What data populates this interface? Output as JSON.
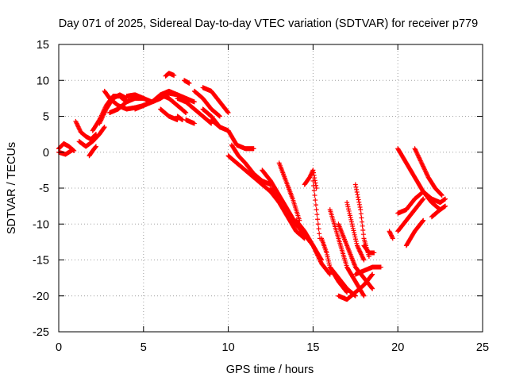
{
  "chart_data": {
    "type": "scatter",
    "title": "Day 071 of 2025, Sidereal Day-to-day VTEC variation (SDTVAR) for receiver p779",
    "xlabel": "GPS time / hours",
    "ylabel": "SDTVAR / TECUs",
    "xlim": [
      0,
      25
    ],
    "ylim": [
      -25,
      15
    ],
    "x_ticks": [
      0,
      5,
      10,
      15,
      20,
      25
    ],
    "y_ticks": [
      15,
      10,
      5,
      0,
      -5,
      -10,
      -15,
      -20,
      -25
    ],
    "x_tick_labels": [
      "0",
      "5",
      "10",
      "15",
      "20",
      "25"
    ],
    "y_tick_labels": [
      "15",
      "10",
      "5",
      "0",
      "-5",
      "-10",
      "-15",
      "-20",
      "-25"
    ],
    "grid": true,
    "marker": "+",
    "series_color": "#ff0000",
    "tracks": [
      {
        "x": [
          0.0,
          0.3,
          0.6,
          0.9
        ],
        "y": [
          0.5,
          1.2,
          0.8,
          0.2
        ]
      },
      {
        "x": [
          0.0,
          0.4,
          0.8
        ],
        "y": [
          0.0,
          -0.3,
          0.3
        ]
      },
      {
        "x": [
          1.0,
          1.3,
          1.6,
          1.9,
          2.2
        ],
        "y": [
          4.3,
          2.8,
          2.2,
          1.8,
          2.5
        ]
      },
      {
        "x": [
          1.2,
          1.6,
          2.0,
          2.4,
          2.7
        ],
        "y": [
          1.5,
          0.8,
          1.5,
          2.5,
          3.5
        ]
      },
      {
        "x": [
          1.8,
          2.0,
          2.2
        ],
        "y": [
          -0.5,
          0.2,
          0.8
        ]
      },
      {
        "x": [
          2.0,
          2.4,
          2.8,
          3.2,
          3.6,
          4.0
        ],
        "y": [
          3.0,
          4.5,
          6.5,
          7.8,
          7.8,
          7.0
        ]
      },
      {
        "x": [
          2.4,
          2.8,
          3.2,
          3.6,
          4.0
        ],
        "y": [
          4.0,
          6.0,
          7.5,
          8.0,
          7.5
        ]
      },
      {
        "x": [
          2.7,
          3.0,
          3.5,
          4.0,
          4.5,
          5.0,
          5.5,
          6.0
        ],
        "y": [
          8.5,
          7.5,
          6.5,
          6.0,
          6.2,
          6.5,
          7.0,
          7.5
        ]
      },
      {
        "x": [
          3.0,
          3.5,
          4.0,
          4.5,
          5.0
        ],
        "y": [
          5.5,
          6.0,
          7.0,
          7.5,
          7.5
        ]
      },
      {
        "x": [
          4.0,
          4.5,
          5.0,
          5.5,
          6.0
        ],
        "y": [
          7.8,
          8.0,
          7.5,
          7.0,
          7.5
        ]
      },
      {
        "x": [
          4.5,
          5.0,
          5.5,
          6.0,
          6.5,
          7.0
        ],
        "y": [
          6.0,
          6.5,
          7.0,
          7.5,
          8.2,
          8.0
        ]
      },
      {
        "x": [
          5.5,
          6.0,
          6.5,
          7.0,
          7.5,
          8.0
        ],
        "y": [
          7.0,
          8.0,
          8.5,
          8.0,
          7.5,
          7.0
        ]
      },
      {
        "x": [
          6.0,
          6.5,
          7.0,
          7.5
        ],
        "y": [
          8.0,
          7.5,
          6.5,
          5.5
        ]
      },
      {
        "x": [
          6.0,
          6.5,
          7.0
        ],
        "y": [
          6.0,
          5.0,
          4.5
        ]
      },
      {
        "x": [
          6.3,
          6.5,
          6.8
        ],
        "y": [
          10.6,
          11.0,
          10.7
        ]
      },
      {
        "x": [
          7.0,
          7.5,
          8.0,
          8.5,
          9.0
        ],
        "y": [
          7.5,
          7.0,
          6.0,
          5.0,
          4.0
        ]
      },
      {
        "x": [
          7.4,
          7.7
        ],
        "y": [
          10.0,
          9.6
        ]
      },
      {
        "x": [
          7.5,
          7.8,
          8.0
        ],
        "y": [
          4.5,
          4.2,
          4.0
        ]
      },
      {
        "x": [
          7.0,
          7.3
        ],
        "y": [
          5.0,
          4.5
        ]
      },
      {
        "x": [
          8.0,
          8.5,
          9.0,
          9.5
        ],
        "y": [
          8.5,
          7.5,
          6.0,
          5.0
        ]
      },
      {
        "x": [
          8.5,
          9.0,
          9.5,
          10.0
        ],
        "y": [
          9.0,
          8.5,
          7.0,
          5.5
        ]
      },
      {
        "x": [
          8.5,
          9.0,
          9.5
        ],
        "y": [
          6.0,
          5.0,
          3.5
        ]
      },
      {
        "x": [
          9.0,
          9.5,
          10.0
        ],
        "y": [
          4.5,
          3.5,
          3.0
        ]
      },
      {
        "x": [
          10.0,
          10.5,
          11.0,
          11.5
        ],
        "y": [
          3.0,
          1.0,
          0.5,
          0.5
        ]
      },
      {
        "x": [
          10.2,
          10.6,
          11.0,
          11.5,
          12.0,
          12.5
        ],
        "y": [
          1.0,
          -0.5,
          -1.5,
          -3.0,
          -4.0,
          -4.5
        ]
      },
      {
        "x": [
          10.0,
          10.5,
          11.0,
          11.5,
          12.0,
          12.5,
          13.0
        ],
        "y": [
          -0.5,
          -1.5,
          -2.5,
          -3.5,
          -4.5,
          -5.5,
          -7.0
        ]
      },
      {
        "x": [
          12.0,
          12.5,
          13.0,
          13.5,
          14.0,
          14.5
        ],
        "y": [
          -2.5,
          -4.0,
          -6.0,
          -8.0,
          -10.0,
          -11.5
        ]
      },
      {
        "x": [
          12.5,
          13.0,
          13.5,
          14.0,
          14.5
        ],
        "y": [
          -5.0,
          -7.0,
          -9.0,
          -11.0,
          -12.0
        ]
      },
      {
        "x": [
          13.0,
          13.4,
          13.8,
          14.2
        ],
        "y": [
          -1.5,
          -4.0,
          -6.5,
          -9.5
        ]
      },
      {
        "x": [
          13.5,
          14.0,
          14.5,
          15.0,
          15.5
        ],
        "y": [
          -8.5,
          -10.0,
          -11.5,
          -13.0,
          -15.0
        ]
      },
      {
        "x": [
          14.0,
          14.5,
          15.0,
          15.5,
          16.0
        ],
        "y": [
          -9.5,
          -11.0,
          -13.0,
          -15.5,
          -17.0
        ]
      },
      {
        "x": [
          14.5,
          14.8,
          15.0,
          15.2
        ],
        "y": [
          -4.5,
          -3.5,
          -2.5,
          -5.0
        ]
      },
      {
        "x": [
          15.0,
          15.1,
          15.2,
          15.3,
          15.4
        ],
        "y": [
          -4.0,
          -6.0,
          -8.0,
          -10.0,
          -12.0
        ]
      },
      {
        "x": [
          15.5,
          15.8,
          16.0,
          16.5,
          17.0
        ],
        "y": [
          -12.0,
          -14.0,
          -16.0,
          -18.0,
          -19.5
        ]
      },
      {
        "x": [
          16.0,
          16.5,
          17.0,
          17.5,
          18.0
        ],
        "y": [
          -8.0,
          -12.0,
          -16.0,
          -18.0,
          -20.0
        ]
      },
      {
        "x": [
          16.5,
          17.0,
          17.5,
          18.0,
          18.5
        ],
        "y": [
          -10.0,
          -13.0,
          -16.0,
          -17.5,
          -19.0
        ]
      },
      {
        "x": [
          17.0,
          17.3,
          17.6,
          18.0
        ],
        "y": [
          -7.0,
          -10.0,
          -13.0,
          -15.0
        ]
      },
      {
        "x": [
          17.5,
          17.8,
          18.0,
          18.3
        ],
        "y": [
          -4.5,
          -8.0,
          -12.0,
          -14.5
        ]
      },
      {
        "x": [
          18.0,
          18.3,
          18.6
        ],
        "y": [
          -13.0,
          -14.0,
          -14.0
        ]
      },
      {
        "x": [
          16.5,
          17.0,
          17.5,
          18.0,
          18.5
        ],
        "y": [
          -20.0,
          -20.5,
          -19.5,
          -18.5,
          -17.0
        ]
      },
      {
        "x": [
          17.5,
          18.0,
          18.5,
          19.0
        ],
        "y": [
          -17.0,
          -16.5,
          -16.0,
          -16.0
        ]
      },
      {
        "x": [
          16.0,
          16.5,
          17.0,
          17.5
        ],
        "y": [
          -16.0,
          -17.5,
          -19.0,
          -20.0
        ]
      },
      {
        "x": [
          19.5,
          19.7
        ],
        "y": [
          -11.0,
          -12.0
        ]
      },
      {
        "x": [
          20.0,
          20.5,
          21.0,
          21.5
        ],
        "y": [
          -11.0,
          -9.5,
          -8.0,
          -6.5
        ]
      },
      {
        "x": [
          20.0,
          20.5,
          21.0,
          21.5,
          22.0
        ],
        "y": [
          -8.5,
          -8.0,
          -6.5,
          -5.5,
          -6.5
        ]
      },
      {
        "x": [
          20.0,
          20.5,
          21.0,
          21.5,
          22.0,
          22.5
        ],
        "y": [
          0.5,
          -1.5,
          -3.5,
          -5.5,
          -7.0,
          -8.0
        ]
      },
      {
        "x": [
          21.0,
          21.4,
          21.8,
          22.2,
          22.6
        ],
        "y": [
          0.5,
          -1.5,
          -3.5,
          -5.0,
          -6.0
        ]
      },
      {
        "x": [
          22.0,
          22.5,
          22.8
        ],
        "y": [
          -6.5,
          -7.0,
          -6.5
        ]
      },
      {
        "x": [
          22.0,
          22.5,
          22.8
        ],
        "y": [
          -9.0,
          -8.0,
          -7.5
        ]
      },
      {
        "x": [
          20.5,
          21.0,
          21.5
        ],
        "y": [
          -13.0,
          -11.0,
          -9.5
        ]
      }
    ]
  }
}
